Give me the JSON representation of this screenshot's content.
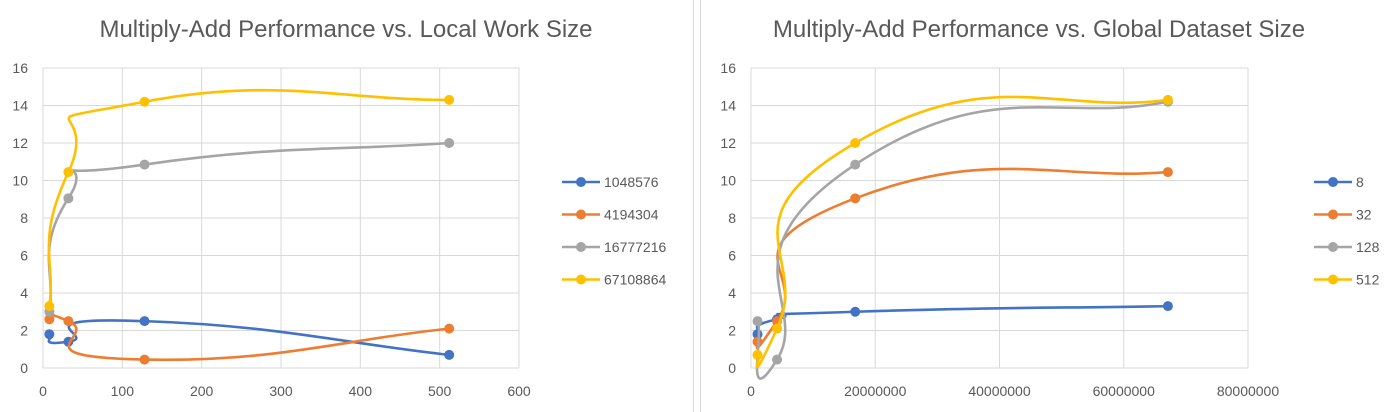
{
  "chart_data": [
    {
      "type": "line",
      "title": "Multiply-Add Performance vs. Local Work Size",
      "xlabel": "",
      "ylabel": "",
      "xlim": [
        0,
        600
      ],
      "ylim": [
        0,
        16
      ],
      "x_ticks": [
        "0",
        "100",
        "200",
        "300",
        "400",
        "500",
        "600"
      ],
      "y_ticks": [
        "0",
        "2",
        "4",
        "6",
        "8",
        "10",
        "12",
        "14",
        "16"
      ],
      "grid": true,
      "legend": "right",
      "smooth": true,
      "series": [
        {
          "name": "1048576",
          "color": "#4472C4",
          "x": [
            8,
            32,
            128,
            512
          ],
          "y": [
            1.8,
            1.4,
            2.5,
            0.7
          ]
        },
        {
          "name": "4194304",
          "color": "#ED7D31",
          "x": [
            8,
            32,
            128,
            512
          ],
          "y": [
            2.6,
            2.5,
            0.45,
            2.1
          ]
        },
        {
          "name": "16777216",
          "color": "#A5A5A5",
          "x": [
            8,
            32,
            128,
            512
          ],
          "y": [
            3.0,
            9.05,
            10.85,
            12.0
          ]
        },
        {
          "name": "67108864",
          "color": "#FFC000",
          "x": [
            8,
            32,
            128,
            512
          ],
          "y": [
            3.3,
            10.45,
            14.2,
            14.3
          ]
        }
      ]
    },
    {
      "type": "line",
      "title": "Multiply-Add Performance vs. Global Dataset Size",
      "xlabel": "",
      "ylabel": "",
      "xlim": [
        0,
        80000000
      ],
      "ylim": [
        0,
        16
      ],
      "x_ticks": [
        "0",
        "20000000",
        "40000000",
        "60000000",
        "80000000"
      ],
      "y_ticks": [
        "0",
        "2",
        "4",
        "6",
        "8",
        "10",
        "12",
        "14",
        "16"
      ],
      "grid": true,
      "legend": "right",
      "smooth": true,
      "series": [
        {
          "name": "8",
          "color": "#4472C4",
          "x": [
            1048576,
            4194304,
            16777216,
            67108864
          ],
          "y": [
            1.8,
            2.6,
            3.0,
            3.3
          ]
        },
        {
          "name": "32",
          "color": "#ED7D31",
          "x": [
            1048576,
            4194304,
            16777216,
            67108864
          ],
          "y": [
            1.4,
            2.5,
            9.05,
            10.45
          ]
        },
        {
          "name": "128",
          "color": "#A5A5A5",
          "x": [
            1048576,
            4194304,
            16777216,
            67108864
          ],
          "y": [
            2.5,
            0.45,
            10.85,
            14.2
          ]
        },
        {
          "name": "512",
          "color": "#FFC000",
          "x": [
            1048576,
            4194304,
            16777216,
            67108864
          ],
          "y": [
            0.7,
            2.1,
            12.0,
            14.3
          ]
        }
      ]
    }
  ]
}
